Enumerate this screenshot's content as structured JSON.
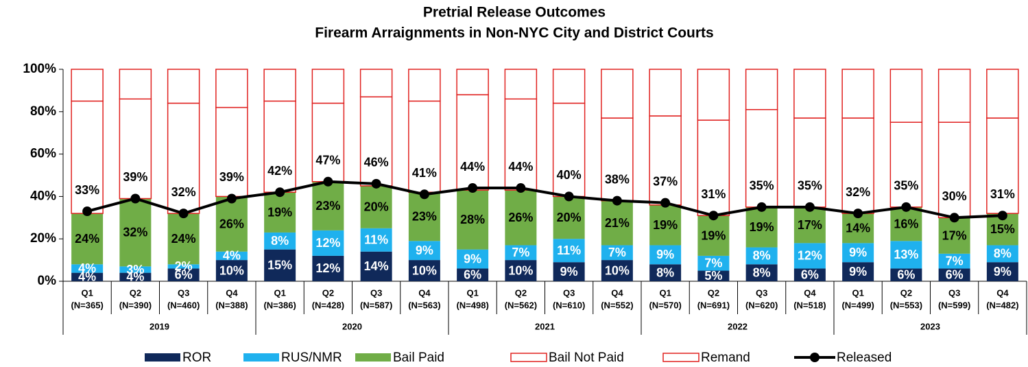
{
  "chart_data": {
    "type": "stacked_bar_line",
    "title": "Pretrial Release Outcomes",
    "subtitle": "Firearm Arraignments in Non-NYC City and District Courts",
    "categories": [
      "Q1",
      "Q2",
      "Q3",
      "Q4",
      "Q1",
      "Q2",
      "Q3",
      "Q4",
      "Q1",
      "Q2",
      "Q3",
      "Q4",
      "Q1",
      "Q2",
      "Q3",
      "Q4",
      "Q1",
      "Q2",
      "Q3",
      "Q4"
    ],
    "category_counts": [
      "(N=365)",
      "(N=390)",
      "(N=460)",
      "(N=388)",
      "(N=386)",
      "(N=428)",
      "(N=587)",
      "(N=563)",
      "(N=498)",
      "(N=562)",
      "(N=610)",
      "(N=552)",
      "(N=570)",
      "(N=691)",
      "(N=620)",
      "(N=518)",
      "(N=499)",
      "(N=553)",
      "(N=599)",
      "(N=482)"
    ],
    "years": [
      "2019",
      "2020",
      "2021",
      "2022",
      "2023"
    ],
    "ylim": [
      0,
      100
    ],
    "yticks": [
      {
        "value": 0,
        "label": "0%"
      },
      {
        "value": 20,
        "label": "20%"
      },
      {
        "value": 40,
        "label": "40%"
      },
      {
        "value": 60,
        "label": "60%"
      },
      {
        "value": 80,
        "label": "80%"
      },
      {
        "value": 100,
        "label": "100%"
      }
    ],
    "series": [
      {
        "name": "ROR",
        "kind": "bar",
        "color": "#10295a",
        "label_color": "#ffffff",
        "values": [
          4,
          4,
          6,
          10,
          15,
          12,
          14,
          10,
          6,
          10,
          9,
          10,
          8,
          5,
          8,
          6,
          9,
          6,
          6,
          9
        ],
        "value_labels": [
          "4%",
          "4%",
          "6%",
          "10%",
          "15%",
          "12%",
          "14%",
          "10%",
          "6%",
          "10%",
          "9%",
          "10%",
          "8%",
          "5%",
          "8%",
          "6%",
          "9%",
          "6%",
          "6%",
          "9%"
        ]
      },
      {
        "name": "RUS/NMR",
        "kind": "bar",
        "color": "#1fb1ee",
        "label_color": "#ffffff",
        "values": [
          4,
          3,
          2,
          4,
          8,
          12,
          11,
          9,
          9,
          7,
          11,
          7,
          9,
          7,
          8,
          12,
          9,
          13,
          7,
          8
        ],
        "value_labels": [
          "4%",
          "3%",
          "2%",
          "4%",
          "8%",
          "12%",
          "11%",
          "9%",
          "9%",
          "7%",
          "11%",
          "7%",
          "9%",
          "7%",
          "8%",
          "12%",
          "9%",
          "13%",
          "7%",
          "8%"
        ]
      },
      {
        "name": "Bail Paid",
        "kind": "bar",
        "color": "#70ad47",
        "label_color": "#000000",
        "values": [
          24,
          32,
          24,
          26,
          19,
          23,
          20,
          23,
          28,
          26,
          20,
          21,
          19,
          19,
          19,
          17,
          14,
          16,
          17,
          15
        ],
        "value_labels": [
          "24%",
          "32%",
          "24%",
          "26%",
          "19%",
          "23%",
          "20%",
          "23%",
          "28%",
          "26%",
          "20%",
          "21%",
          "19%",
          "19%",
          "19%",
          "17%",
          "14%",
          "16%",
          "17%",
          "15%"
        ]
      },
      {
        "name": "Bail Not Paid",
        "kind": "outline",
        "color": "#e0201f",
        "values": [
          53,
          47,
          52,
          42,
          43,
          37,
          42,
          43,
          45,
          43,
          44,
          39,
          42,
          45,
          46,
          42,
          45,
          40,
          45,
          45
        ]
      },
      {
        "name": "Remand",
        "kind": "outline",
        "color": "#e0201f",
        "values": [
          15,
          14,
          16,
          18,
          15,
          16,
          13,
          15,
          12,
          14,
          16,
          23,
          22,
          24,
          19,
          23,
          23,
          25,
          25,
          23
        ]
      },
      {
        "name": "Released",
        "kind": "line",
        "color": "#000000",
        "label_color": "#000000",
        "values": [
          33,
          39,
          32,
          39,
          42,
          47,
          46,
          41,
          44,
          44,
          40,
          38,
          37,
          31,
          35,
          35,
          32,
          35,
          30,
          31
        ],
        "value_labels": [
          "33%",
          "39%",
          "32%",
          "39%",
          "42%",
          "47%",
          "46%",
          "41%",
          "44%",
          "44%",
          "40%",
          "38%",
          "37%",
          "31%",
          "35%",
          "35%",
          "32%",
          "35%",
          "30%",
          "31%"
        ]
      }
    ]
  }
}
